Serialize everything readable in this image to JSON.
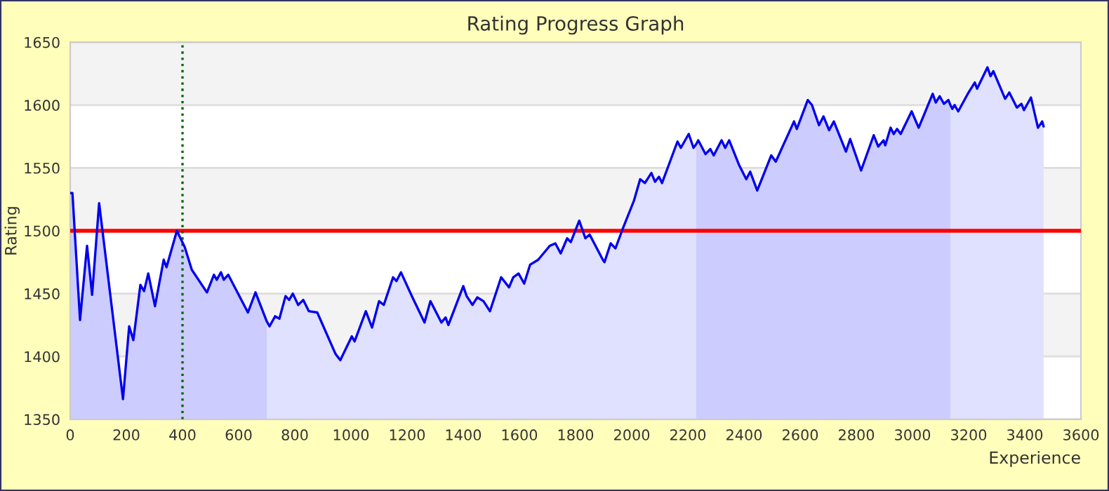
{
  "chart_data": {
    "type": "line",
    "title": "Rating Progress Graph",
    "xlabel": "Experience",
    "ylabel": "Rating",
    "xlim": [
      0,
      3600
    ],
    "xticks": [
      0,
      200,
      400,
      600,
      800,
      1000,
      1200,
      1400,
      1600,
      1800,
      2000,
      2200,
      2400,
      2600,
      2800,
      3000,
      3200,
      3400,
      3600
    ],
    "ylim": [
      1350,
      1650
    ],
    "yticks": [
      1350,
      1400,
      1450,
      1500,
      1550,
      1600,
      1650
    ],
    "grid": "y",
    "legend": false,
    "ref_lines": [
      {
        "axis": "y",
        "value": 1500,
        "color": "#ff0000",
        "line_style": "solid"
      },
      {
        "axis": "x",
        "value": 400,
        "color": "#006600",
        "line_style": "dotted"
      }
    ],
    "series": [
      {
        "type": "area",
        "color": "#ccccff",
        "x": [
          0,
          8,
          35,
          60,
          78,
          103,
          188,
          210,
          225,
          250,
          263,
          278,
          302,
          333,
          343,
          380,
          408,
          433,
          487,
          512,
          522,
          537,
          547,
          563,
          633,
          660,
          700
        ],
        "values": [
          1530,
          1530,
          1429,
          1488,
          1449,
          1522,
          1366,
          1424,
          1413,
          1457,
          1452,
          1466,
          1440,
          1477,
          1471,
          1500,
          1487,
          1469,
          1451,
          1465,
          1461,
          1467,
          1461,
          1465,
          1435,
          1451,
          1428
        ]
      },
      {
        "type": "area",
        "color": "#e0e0ff",
        "x": [
          700,
          710,
          730,
          745,
          767,
          780,
          793,
          812,
          830,
          850,
          880,
          945,
          962,
          1003,
          1013,
          1053,
          1075,
          1100,
          1117,
          1150,
          1162,
          1178,
          1217,
          1262,
          1283,
          1322,
          1337,
          1347,
          1400,
          1412,
          1433,
          1450,
          1472,
          1495,
          1535,
          1563,
          1578,
          1597,
          1617,
          1638,
          1667,
          1708,
          1728,
          1747,
          1770,
          1783,
          1813,
          1835,
          1850,
          1897,
          1903,
          1925,
          1942,
          1967,
          2008,
          2030,
          2047,
          2070,
          2083,
          2097,
          2108,
          2163,
          2175,
          2203,
          2220,
          2230
        ],
        "values": [
          1428,
          1424,
          1432,
          1430,
          1448,
          1445,
          1450,
          1441,
          1445,
          1436,
          1435,
          1402,
          1397,
          1416,
          1412,
          1436,
          1423,
          1444,
          1441,
          1463,
          1460,
          1467,
          1448,
          1427,
          1444,
          1427,
          1431,
          1425,
          1456,
          1448,
          1441,
          1447,
          1444,
          1436,
          1463,
          1455,
          1463,
          1466,
          1458,
          1473,
          1477,
          1488,
          1490,
          1482,
          1494,
          1491,
          1508,
          1494,
          1497,
          1477,
          1475,
          1490,
          1486,
          1501,
          1524,
          1541,
          1538,
          1546,
          1539,
          1543,
          1538,
          1571,
          1566,
          1577,
          1566,
          1569
        ]
      },
      {
        "type": "area",
        "color": "#ccccff",
        "x": [
          2230,
          2237,
          2263,
          2280,
          2292,
          2320,
          2333,
          2347,
          2383,
          2408,
          2422,
          2447,
          2497,
          2513,
          2578,
          2588,
          2627,
          2642,
          2667,
          2683,
          2703,
          2720,
          2763,
          2778,
          2817,
          2862,
          2878,
          2897,
          2903,
          2922,
          2933,
          2945,
          2958,
          2997,
          3022,
          3072,
          3083,
          3097,
          3112,
          3128,
          3135
        ],
        "values": [
          1569,
          1572,
          1561,
          1565,
          1560,
          1572,
          1566,
          1572,
          1552,
          1541,
          1547,
          1532,
          1560,
          1555,
          1587,
          1581,
          1604,
          1600,
          1584,
          1591,
          1580,
          1587,
          1563,
          1573,
          1548,
          1576,
          1567,
          1572,
          1568,
          1582,
          1577,
          1581,
          1577,
          1595,
          1582,
          1609,
          1602,
          1607,
          1601,
          1604,
          1600
        ]
      },
      {
        "type": "area",
        "color": "#e0e0ff",
        "x": [
          3135,
          3142,
          3150,
          3163,
          3197,
          3222,
          3230,
          3267,
          3278,
          3288,
          3330,
          3345,
          3372,
          3388,
          3397,
          3422,
          3447,
          3462,
          3467
        ],
        "values": [
          1600,
          1597,
          1600,
          1595,
          1609,
          1618,
          1613,
          1630,
          1623,
          1627,
          1605,
          1610,
          1598,
          1601,
          1596,
          1606,
          1582,
          1587,
          1583
        ]
      },
      {
        "color": "#0000ee",
        "x": [
          0,
          8,
          35,
          60,
          78,
          103,
          188,
          210,
          225,
          250,
          263,
          278,
          302,
          333,
          343,
          380,
          408,
          433,
          487,
          512,
          522,
          537,
          547,
          563,
          633,
          660,
          700,
          710,
          730,
          745,
          767,
          780,
          793,
          812,
          830,
          850,
          880,
          945,
          962,
          1003,
          1013,
          1053,
          1075,
          1100,
          1117,
          1150,
          1162,
          1178,
          1217,
          1262,
          1283,
          1322,
          1337,
          1347,
          1400,
          1412,
          1433,
          1450,
          1472,
          1495,
          1535,
          1563,
          1578,
          1597,
          1617,
          1638,
          1667,
          1708,
          1728,
          1747,
          1770,
          1783,
          1813,
          1835,
          1850,
          1897,
          1903,
          1925,
          1942,
          1967,
          2008,
          2030,
          2047,
          2070,
          2083,
          2097,
          2108,
          2163,
          2175,
          2203,
          2220,
          2230,
          2237,
          2263,
          2280,
          2292,
          2320,
          2333,
          2347,
          2383,
          2408,
          2422,
          2447,
          2497,
          2513,
          2578,
          2588,
          2627,
          2642,
          2667,
          2683,
          2703,
          2720,
          2763,
          2778,
          2817,
          2862,
          2878,
          2897,
          2903,
          2922,
          2933,
          2945,
          2958,
          2997,
          3022,
          3072,
          3083,
          3097,
          3112,
          3128,
          3135,
          3142,
          3150,
          3163,
          3197,
          3222,
          3230,
          3267,
          3278,
          3288,
          3330,
          3345,
          3372,
          3388,
          3397,
          3422,
          3447,
          3462,
          3467
        ],
        "values": [
          1530,
          1530,
          1429,
          1488,
          1449,
          1522,
          1366,
          1424,
          1413,
          1457,
          1452,
          1466,
          1440,
          1477,
          1471,
          1500,
          1487,
          1469,
          1451,
          1465,
          1461,
          1467,
          1461,
          1465,
          1435,
          1451,
          1428,
          1424,
          1432,
          1430,
          1448,
          1445,
          1450,
          1441,
          1445,
          1436,
          1435,
          1402,
          1397,
          1416,
          1412,
          1436,
          1423,
          1444,
          1441,
          1463,
          1460,
          1467,
          1448,
          1427,
          1444,
          1427,
          1431,
          1425,
          1456,
          1448,
          1441,
          1447,
          1444,
          1436,
          1463,
          1455,
          1463,
          1466,
          1458,
          1473,
          1477,
          1488,
          1490,
          1482,
          1494,
          1491,
          1508,
          1494,
          1497,
          1477,
          1475,
          1490,
          1486,
          1501,
          1524,
          1541,
          1538,
          1546,
          1539,
          1543,
          1538,
          1571,
          1566,
          1577,
          1566,
          1569,
          1572,
          1561,
          1565,
          1560,
          1572,
          1566,
          1572,
          1552,
          1541,
          1547,
          1532,
          1560,
          1555,
          1587,
          1581,
          1604,
          1600,
          1584,
          1591,
          1580,
          1587,
          1563,
          1573,
          1548,
          1576,
          1567,
          1572,
          1568,
          1582,
          1577,
          1581,
          1577,
          1595,
          1582,
          1609,
          1602,
          1607,
          1601,
          1604,
          1600,
          1597,
          1600,
          1595,
          1609,
          1618,
          1613,
          1630,
          1623,
          1627,
          1605,
          1610,
          1598,
          1601,
          1596,
          1606,
          1582,
          1587,
          1583
        ]
      }
    ]
  }
}
